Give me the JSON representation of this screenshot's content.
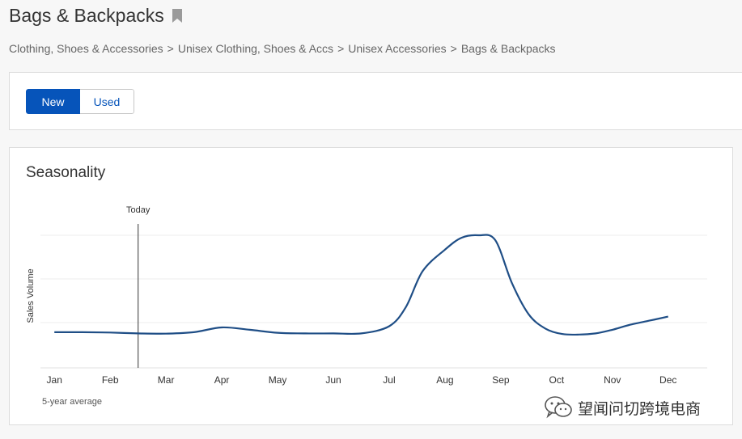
{
  "page": {
    "title": "Bags & Backpacks",
    "breadcrumb": [
      "Clothing, Shoes & Accessories",
      "Unisex Clothing, Shoes & Accs",
      "Unisex Accessories",
      "Bags & Backpacks"
    ],
    "breadcrumb_separator": ">"
  },
  "condition_toggle": {
    "options": [
      {
        "label": "New",
        "selected": true
      },
      {
        "label": "Used",
        "selected": false
      }
    ]
  },
  "seasonality": {
    "title": "Seasonality",
    "footnote": "5-year average",
    "today_label": "Today"
  },
  "watermark": {
    "text": "望闻问切跨境电商",
    "icon": "wechat-icon"
  },
  "colors": {
    "accent": "#0654ba",
    "line": "#1f4e86",
    "grid": "#ececec"
  },
  "chart_data": {
    "type": "line",
    "title": "Seasonality",
    "ylabel": "Sales Volume",
    "xlabel": "",
    "categories": [
      "Jan",
      "Feb",
      "Mar",
      "Apr",
      "May",
      "Jun",
      "Jul",
      "Aug",
      "Sep",
      "Oct",
      "Nov",
      "Dec"
    ],
    "y_ticks_shown": false,
    "ylim": [
      0,
      100
    ],
    "grid": true,
    "today_marker": 2.5,
    "series": [
      {
        "x": [
          1.0,
          1.5,
          2.0,
          2.5,
          3.0,
          3.5,
          4.0,
          4.5,
          5.0,
          5.5,
          6.0,
          6.5,
          7.0,
          7.3,
          7.6,
          8.0,
          8.3,
          8.6,
          8.9,
          9.2,
          9.5,
          9.8,
          10.1,
          10.4,
          10.7,
          11.0,
          11.3,
          11.7,
          12.0
        ],
        "y": [
          19,
          19,
          18.7,
          18,
          17.8,
          19,
          23,
          21,
          18.5,
          18,
          18,
          18,
          24,
          40,
          70,
          88,
          98,
          100,
          96,
          60,
          34,
          22,
          17.5,
          17,
          18,
          21,
          25,
          29,
          32
        ]
      }
    ]
  }
}
